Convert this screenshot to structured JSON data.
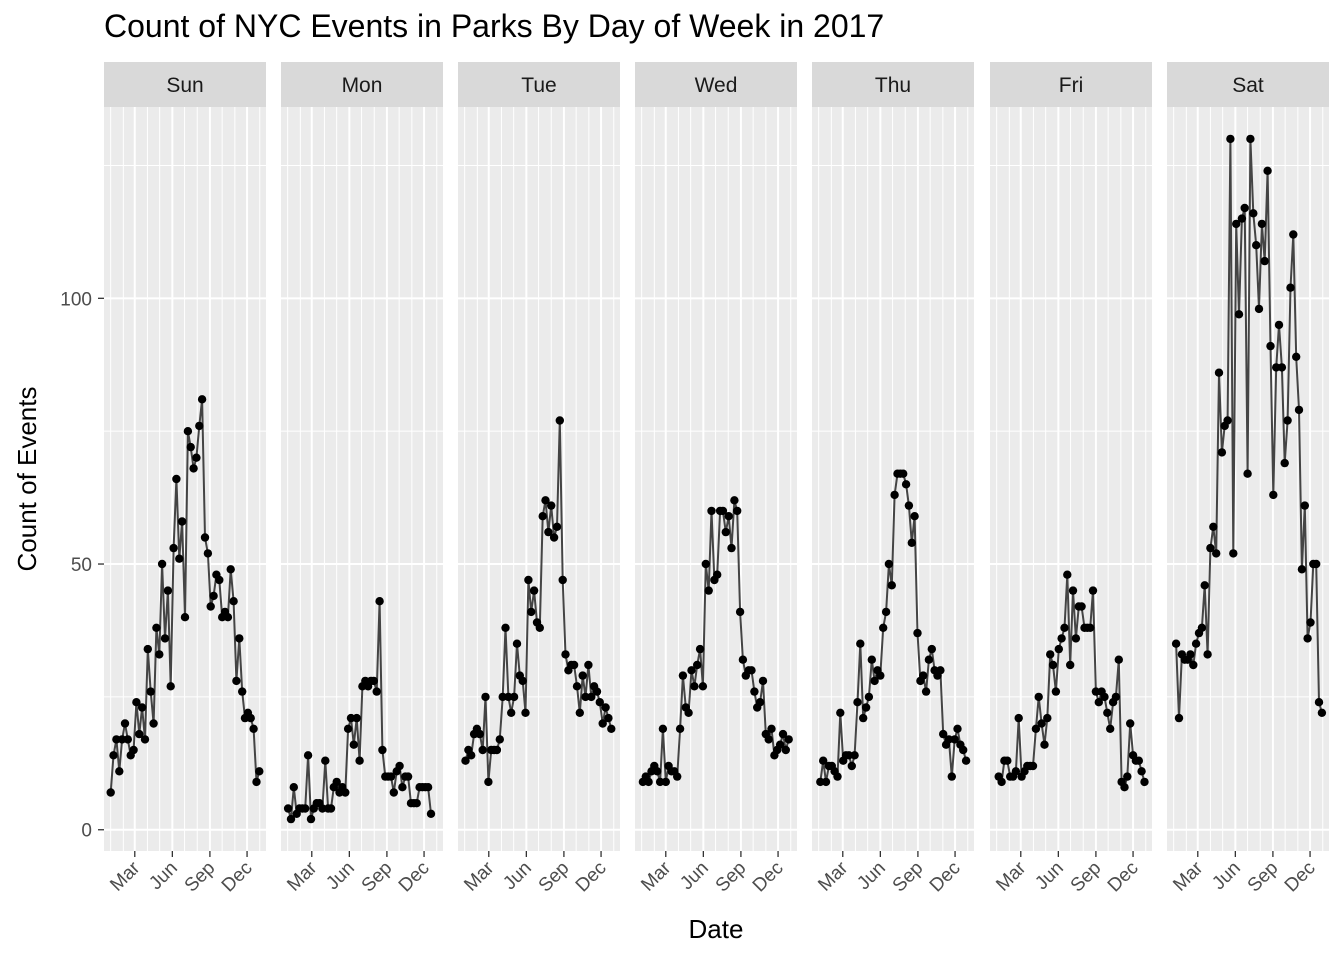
{
  "chart_data": {
    "type": "line",
    "title": "Count of NYC Events in Parks By Day of Week in 2017",
    "xlabel": "Date",
    "ylabel": "Count of Events",
    "x_unit": "month of 2017 (weekly observations)",
    "xlim": [
      "2017-01-01",
      "2017-12-31"
    ],
    "ylim": [
      -4,
      136
    ],
    "y_ticks": [
      0,
      50,
      100
    ],
    "x_ticks": [
      {
        "label": "Mar",
        "date": "2017-03-01"
      },
      {
        "label": "Jun",
        "date": "2017-06-01"
      },
      {
        "label": "Sep",
        "date": "2017-09-01"
      },
      {
        "label": "Dec",
        "date": "2017-12-01"
      }
    ],
    "grid": true,
    "legend": "none",
    "colors": {
      "panel_bg": "#ebebeb",
      "strip_bg": "#d9d9d9",
      "grid": "#ffffff",
      "line": "#444444",
      "point": "#000000"
    },
    "facets": [
      {
        "name": "Sun",
        "start_date": "2017-01-01",
        "values": [
          7,
          14,
          17,
          11,
          17,
          20,
          17,
          14,
          15,
          24,
          18,
          23,
          17,
          34,
          26,
          20,
          38,
          33,
          50,
          36,
          45,
          27,
          53,
          66,
          51,
          58,
          40,
          75,
          72,
          68,
          70,
          76,
          81,
          55,
          52,
          42,
          44,
          48,
          47,
          40,
          41,
          40,
          49,
          43,
          28,
          36,
          26,
          21,
          22,
          21,
          19,
          9,
          11
        ]
      },
      {
        "name": "Mon",
        "start_date": "2017-01-02",
        "values": [
          4,
          2,
          8,
          3,
          4,
          4,
          4,
          14,
          2,
          4,
          5,
          5,
          4,
          13,
          4,
          4,
          8,
          9,
          7,
          8,
          7,
          19,
          21,
          16,
          21,
          13,
          27,
          28,
          27,
          28,
          28,
          26,
          43,
          15,
          10,
          10,
          10,
          7,
          11,
          12,
          8,
          10,
          10,
          5,
          5,
          5,
          8,
          8,
          8,
          8,
          3
        ]
      },
      {
        "name": "Tue",
        "start_date": "2017-01-03",
        "values": [
          13,
          15,
          14,
          18,
          19,
          18,
          15,
          25,
          9,
          15,
          15,
          15,
          17,
          25,
          38,
          25,
          22,
          25,
          35,
          29,
          28,
          22,
          47,
          41,
          45,
          39,
          38,
          59,
          62,
          56,
          61,
          55,
          57,
          77,
          47,
          33,
          30,
          31,
          31,
          27,
          22,
          29,
          25,
          31,
          25,
          27,
          26,
          24,
          20,
          23,
          21,
          19
        ]
      },
      {
        "name": "Wed",
        "start_date": "2017-01-04",
        "values": [
          9,
          10,
          9,
          11,
          12,
          11,
          9,
          19,
          9,
          12,
          11,
          11,
          10,
          19,
          29,
          23,
          22,
          30,
          27,
          31,
          34,
          27,
          50,
          45,
          60,
          47,
          48,
          60,
          60,
          56,
          59,
          53,
          62,
          60,
          41,
          32,
          29,
          30,
          30,
          26,
          23,
          24,
          28,
          18,
          17,
          19,
          14,
          15,
          16,
          18,
          15,
          17
        ]
      },
      {
        "name": "Thu",
        "start_date": "2017-01-05",
        "values": [
          9,
          13,
          9,
          12,
          12,
          11,
          10,
          22,
          13,
          14,
          14,
          12,
          14,
          24,
          35,
          21,
          23,
          25,
          32,
          28,
          30,
          29,
          38,
          41,
          50,
          46,
          63,
          67,
          67,
          67,
          65,
          61,
          54,
          59,
          37,
          28,
          29,
          26,
          32,
          34,
          30,
          29,
          30,
          18,
          16,
          17,
          10,
          17,
          19,
          16,
          15,
          13
        ]
      },
      {
        "name": "Fri",
        "start_date": "2017-01-06",
        "values": [
          10,
          9,
          13,
          13,
          10,
          10,
          11,
          21,
          10,
          11,
          12,
          12,
          12,
          19,
          25,
          20,
          16,
          21,
          33,
          31,
          26,
          34,
          36,
          38,
          48,
          31,
          45,
          36,
          42,
          42,
          38,
          38,
          38,
          45,
          26,
          24,
          26,
          25,
          22,
          19,
          24,
          25,
          32,
          9,
          8,
          10,
          20,
          14,
          13,
          13,
          11,
          9
        ]
      },
      {
        "name": "Sat",
        "start_date": "2017-01-07",
        "values": [
          35,
          21,
          33,
          32,
          32,
          33,
          31,
          35,
          37,
          38,
          46,
          33,
          53,
          57,
          52,
          86,
          71,
          76,
          77,
          130,
          52,
          114,
          97,
          115,
          117,
          67,
          130,
          116,
          110,
          98,
          114,
          107,
          124,
          91,
          63,
          87,
          95,
          87,
          69,
          77,
          102,
          112,
          89,
          79,
          49,
          61,
          36,
          39,
          50,
          50,
          24,
          22
        ]
      }
    ]
  }
}
